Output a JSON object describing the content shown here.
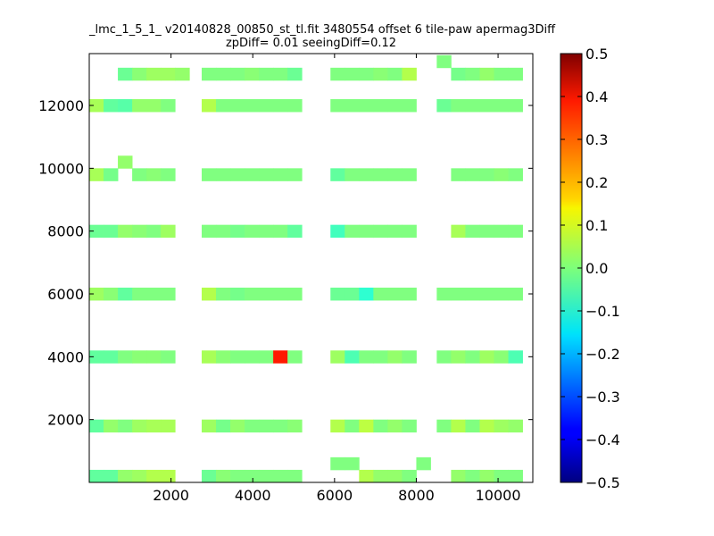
{
  "chart_data": {
    "type": "heatmap",
    "title_line1": "_lmc_1_5_1_ v20140828_00850_st_tl.fit 3480554 offset 6 tile-paw apermag3Diff",
    "title_line2": "zpDiff= 0.01 seeingDiff=0.12",
    "xlabel": "",
    "ylabel": "",
    "xlim": [
      0,
      10850
    ],
    "ylim": [
      0,
      13650
    ],
    "x_ticks": [
      2000,
      4000,
      6000,
      8000,
      10000
    ],
    "y_ticks": [
      2000,
      4000,
      6000,
      8000,
      10000,
      12000
    ],
    "x_tick_labels": [
      "2000",
      "4000",
      "6000",
      "8000",
      "10000"
    ],
    "y_tick_labels": [
      "2000",
      "4000",
      "6000",
      "8000",
      "10000",
      "12000"
    ],
    "colorbar": {
      "colormap": "jet",
      "vmin": -0.5,
      "vmax": 0.5,
      "ticks": [
        0.5,
        0.4,
        0.3,
        0.2,
        0.1,
        0.0,
        -0.1,
        -0.2,
        -0.3,
        -0.4,
        -0.5
      ],
      "tick_labels": [
        "0.5",
        "0.4",
        "0.3",
        "0.2",
        "0.1",
        "0.0",
        "−0.1",
        "−0.2",
        "−0.3",
        "−0.4",
        "−0.5"
      ]
    },
    "cell_size": [
      350,
      400
    ],
    "cells": [
      [
        0,
        0,
        -0.03
      ],
      [
        350,
        0,
        -0.03
      ],
      [
        700,
        0,
        0.02
      ],
      [
        1050,
        0,
        0.03
      ],
      [
        1400,
        0,
        0.05
      ],
      [
        1750,
        0,
        0.05
      ],
      [
        2750,
        0,
        -0.02
      ],
      [
        3100,
        0,
        0.01
      ],
      [
        3450,
        0,
        0.0
      ],
      [
        3800,
        0,
        0.0
      ],
      [
        4150,
        0,
        0.0
      ],
      [
        4500,
        0,
        0.0
      ],
      [
        4850,
        0,
        0.0
      ],
      [
        5900,
        400,
        0.0
      ],
      [
        6250,
        400,
        0.0
      ],
      [
        6600,
        0,
        0.05
      ],
      [
        6950,
        0,
        0.02
      ],
      [
        7300,
        0,
        0.02
      ],
      [
        7650,
        0,
        0.0
      ],
      [
        8000,
        400,
        0.0
      ],
      [
        8850,
        0,
        0.02
      ],
      [
        9200,
        0,
        0.0
      ],
      [
        9550,
        0,
        0.02
      ],
      [
        9900,
        0,
        0.0
      ],
      [
        10250,
        0,
        0.0
      ],
      [
        0,
        1600,
        -0.03
      ],
      [
        350,
        1600,
        0.02
      ],
      [
        700,
        1600,
        0.0
      ],
      [
        1050,
        1600,
        0.03
      ],
      [
        1400,
        1600,
        0.04
      ],
      [
        1750,
        1600,
        0.04
      ],
      [
        2750,
        1600,
        0.03
      ],
      [
        3100,
        1600,
        -0.01
      ],
      [
        3450,
        1600,
        0.02
      ],
      [
        3800,
        1600,
        0.0
      ],
      [
        4150,
        1600,
        0.0
      ],
      [
        4500,
        1600,
        0.0
      ],
      [
        4850,
        1600,
        0.01
      ],
      [
        5900,
        1600,
        0.05
      ],
      [
        6250,
        1600,
        0.0
      ],
      [
        6600,
        1600,
        0.06
      ],
      [
        6950,
        1600,
        0.0
      ],
      [
        7300,
        1600,
        0.02
      ],
      [
        7650,
        1600,
        0.0
      ],
      [
        8500,
        1600,
        0.0
      ],
      [
        8850,
        1600,
        0.05
      ],
      [
        9200,
        1600,
        0.0
      ],
      [
        9550,
        1600,
        0.05
      ],
      [
        9900,
        1600,
        0.03
      ],
      [
        10250,
        1600,
        0.02
      ],
      [
        0,
        3800,
        -0.03
      ],
      [
        350,
        3800,
        -0.03
      ],
      [
        700,
        3800,
        0.0
      ],
      [
        1050,
        3800,
        0.01
      ],
      [
        1400,
        3800,
        0.01
      ],
      [
        1750,
        3800,
        0.0
      ],
      [
        2750,
        3800,
        0.04
      ],
      [
        3100,
        3800,
        0.01
      ],
      [
        3450,
        3800,
        0.0
      ],
      [
        3800,
        3800,
        0.0
      ],
      [
        4150,
        3800,
        0.0
      ],
      [
        4500,
        3800,
        0.35
      ],
      [
        4850,
        3800,
        0.0
      ],
      [
        5900,
        3800,
        0.03
      ],
      [
        6250,
        3800,
        -0.05
      ],
      [
        6600,
        3800,
        0.0
      ],
      [
        6950,
        3800,
        0.0
      ],
      [
        7300,
        3800,
        0.02
      ],
      [
        7650,
        3800,
        0.0
      ],
      [
        8500,
        3800,
        0.0
      ],
      [
        8850,
        3800,
        0.02
      ],
      [
        9200,
        3800,
        0.0
      ],
      [
        9550,
        3800,
        0.03
      ],
      [
        9900,
        3800,
        0.01
      ],
      [
        10250,
        3800,
        -0.05
      ],
      [
        0,
        5800,
        0.03
      ],
      [
        350,
        5800,
        0.01
      ],
      [
        700,
        5800,
        -0.03
      ],
      [
        1050,
        5800,
        0.0
      ],
      [
        1400,
        5800,
        0.0
      ],
      [
        1750,
        5800,
        0.0
      ],
      [
        2750,
        5800,
        0.05
      ],
      [
        3100,
        5800,
        0.0
      ],
      [
        3450,
        5800,
        -0.01
      ],
      [
        3800,
        5800,
        0.0
      ],
      [
        4150,
        5800,
        0.0
      ],
      [
        4500,
        5800,
        0.0
      ],
      [
        4850,
        5800,
        0.0
      ],
      [
        5900,
        5800,
        -0.02
      ],
      [
        6250,
        5800,
        -0.02
      ],
      [
        6600,
        5800,
        -0.08
      ],
      [
        6950,
        5800,
        0.0
      ],
      [
        7300,
        5800,
        0.0
      ],
      [
        7650,
        5800,
        0.0
      ],
      [
        8500,
        5800,
        0.0
      ],
      [
        8850,
        5800,
        0.0
      ],
      [
        9200,
        5800,
        0.0
      ],
      [
        9550,
        5800,
        0.0
      ],
      [
        9900,
        5800,
        0.0
      ],
      [
        10250,
        5800,
        0.0
      ],
      [
        0,
        7800,
        -0.02
      ],
      [
        350,
        7800,
        -0.02
      ],
      [
        700,
        7800,
        0.02
      ],
      [
        1050,
        7800,
        0.01
      ],
      [
        1400,
        7800,
        0.0
      ],
      [
        1750,
        7800,
        0.03
      ],
      [
        2750,
        7800,
        0.0
      ],
      [
        3100,
        7800,
        0.0
      ],
      [
        3450,
        7800,
        -0.01
      ],
      [
        3800,
        7800,
        0.0
      ],
      [
        4150,
        7800,
        0.0
      ],
      [
        4500,
        7800,
        0.0
      ],
      [
        4850,
        7800,
        -0.03
      ],
      [
        5900,
        7800,
        -0.06
      ],
      [
        6250,
        7800,
        0.0
      ],
      [
        6600,
        7800,
        0.0
      ],
      [
        6950,
        7800,
        0.0
      ],
      [
        7300,
        7800,
        0.0
      ],
      [
        7650,
        7800,
        0.0
      ],
      [
        8850,
        7800,
        0.04
      ],
      [
        9200,
        7800,
        0.0
      ],
      [
        9550,
        7800,
        0.0
      ],
      [
        9900,
        7800,
        0.0
      ],
      [
        10250,
        7800,
        0.0
      ],
      [
        0,
        9600,
        0.04
      ],
      [
        350,
        9600,
        -0.01
      ],
      [
        700,
        10000,
        0.02
      ],
      [
        1050,
        9600,
        0.0
      ],
      [
        1400,
        9600,
        0.01
      ],
      [
        1750,
        9600,
        0.0
      ],
      [
        2750,
        9600,
        0.0
      ],
      [
        3100,
        9600,
        0.0
      ],
      [
        3450,
        9600,
        0.0
      ],
      [
        3800,
        9600,
        0.0
      ],
      [
        4150,
        9600,
        0.0
      ],
      [
        4500,
        9600,
        0.0
      ],
      [
        4850,
        9600,
        0.0
      ],
      [
        5900,
        9600,
        -0.03
      ],
      [
        6250,
        9600,
        0.0
      ],
      [
        6600,
        9600,
        0.0
      ],
      [
        6950,
        9600,
        0.0
      ],
      [
        7300,
        9600,
        0.0
      ],
      [
        7650,
        9600,
        0.0
      ],
      [
        8850,
        9600,
        0.0
      ],
      [
        9200,
        9600,
        0.0
      ],
      [
        9550,
        9600,
        0.0
      ],
      [
        9900,
        9600,
        0.01
      ],
      [
        10250,
        9600,
        0.0
      ],
      [
        0,
        11800,
        0.04
      ],
      [
        350,
        11800,
        -0.03
      ],
      [
        700,
        11800,
        -0.04
      ],
      [
        1050,
        11800,
        0.02
      ],
      [
        1400,
        11800,
        0.02
      ],
      [
        1750,
        11800,
        0.0
      ],
      [
        2750,
        11800,
        0.05
      ],
      [
        3100,
        11800,
        0.0
      ],
      [
        3450,
        11800,
        0.0
      ],
      [
        3800,
        11800,
        0.0
      ],
      [
        4150,
        11800,
        0.0
      ],
      [
        4500,
        11800,
        0.0
      ],
      [
        4850,
        11800,
        0.0
      ],
      [
        5900,
        11800,
        0.0
      ],
      [
        6250,
        11800,
        0.0
      ],
      [
        6600,
        11800,
        0.0
      ],
      [
        6950,
        11800,
        0.0
      ],
      [
        7300,
        11800,
        0.0
      ],
      [
        7650,
        11800,
        0.0
      ],
      [
        8500,
        11800,
        -0.02
      ],
      [
        8850,
        11800,
        0.0
      ],
      [
        9200,
        11800,
        0.0
      ],
      [
        9550,
        11800,
        0.0
      ],
      [
        9900,
        11800,
        0.0
      ],
      [
        10250,
        11800,
        0.0
      ],
      [
        700,
        12800,
        -0.02
      ],
      [
        1050,
        12800,
        0.01
      ],
      [
        1400,
        12800,
        0.03
      ],
      [
        1750,
        12800,
        0.03
      ],
      [
        2100,
        12800,
        0.02
      ],
      [
        2750,
        12800,
        0.0
      ],
      [
        3100,
        12800,
        0.0
      ],
      [
        3450,
        12800,
        0.0
      ],
      [
        3800,
        12800,
        0.01
      ],
      [
        4150,
        12800,
        0.0
      ],
      [
        4500,
        12800,
        0.0
      ],
      [
        4850,
        12800,
        -0.02
      ],
      [
        5900,
        12800,
        0.0
      ],
      [
        6250,
        12800,
        0.0
      ],
      [
        6600,
        12800,
        0.0
      ],
      [
        6950,
        12800,
        0.01
      ],
      [
        7300,
        12800,
        0.0
      ],
      [
        7650,
        12800,
        0.05
      ],
      [
        8500,
        13200,
        0.0
      ],
      [
        8850,
        12800,
        -0.01
      ],
      [
        9200,
        12800,
        0.0
      ],
      [
        9550,
        12800,
        0.02
      ],
      [
        9900,
        12800,
        0.0
      ],
      [
        10250,
        12800,
        0.0
      ]
    ]
  }
}
